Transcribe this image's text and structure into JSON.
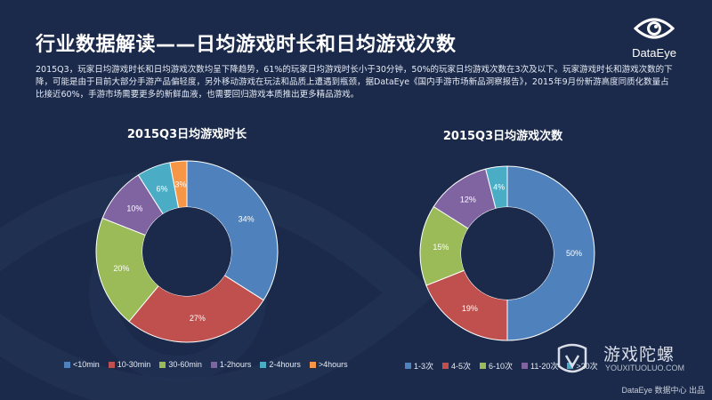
{
  "page": {
    "title": "行业数据解读——日均游戏时长和日均游戏次数",
    "summary": "2015Q3，玩家日均游戏时长和日均游戏次数均呈下降趋势，61%的玩家日均游戏时长小于30分钟，50%的玩家日均游戏次数在3次及以下。玩家游戏时长和游戏次数的下降，可能是由于目前大部分手游产品偏轻度，另外移动游戏在玩法和品质上遭遇到瓶颈，据DataEye《国内手游市场新品洞察报告》，2015年9月份新游高度同质化数量占比接近60%，手游市场需要更多的新鲜血液，也需要回归游戏本质推出更多精品游戏。",
    "background": "#1b2a4a",
    "text_color": "#ffffff"
  },
  "brand": {
    "name": "DataEye",
    "icon": "eye-logo-icon"
  },
  "watermark": {
    "name": "游戏陀螺",
    "url": "YOUXITUOLUO.COM",
    "icon": "tuoluo-logo-icon"
  },
  "footer": {
    "credit": "DataEye 数据中心 出品"
  },
  "chart_data": [
    {
      "type": "pie",
      "title": "2015Q3日均游戏时长",
      "donut": true,
      "legend_position": "bottom",
      "categories": [
        "<10min",
        "10-30min",
        "30-60min",
        "1-2hours",
        "2-4hours",
        ">4hours"
      ],
      "values": [
        34,
        27,
        20,
        10,
        6,
        3
      ],
      "labels": [
        "34%",
        "27%",
        "20%",
        "10%",
        "6%",
        "3%"
      ],
      "unit": "%",
      "colors": [
        "#4f81bd",
        "#c0504d",
        "#9bbb59",
        "#8064a2",
        "#4bacc6",
        "#f79646"
      ]
    },
    {
      "type": "pie",
      "title": "2015Q3日均游戏次数",
      "donut": true,
      "legend_position": "bottom",
      "categories": [
        "1-3次",
        "4-5次",
        "6-10次",
        "11-20次",
        ">20次"
      ],
      "values": [
        50,
        19,
        15,
        12,
        4
      ],
      "labels": [
        "50%",
        "19%",
        "15%",
        "12%",
        "4%"
      ],
      "unit": "%",
      "colors": [
        "#4f81bd",
        "#c0504d",
        "#9bbb59",
        "#8064a2",
        "#4bacc6"
      ]
    }
  ]
}
